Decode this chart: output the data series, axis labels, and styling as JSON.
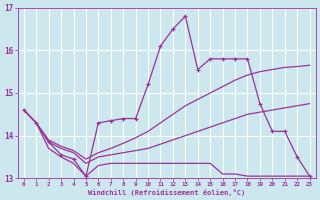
{
  "xlabel": "Windchill (Refroidissement éolien,°C)",
  "bg_color": "#cce8ee",
  "grid_color": "#ffffff",
  "line_color": "#993399",
  "xlim": [
    -0.5,
    23.5
  ],
  "ylim": [
    13,
    17
  ],
  "yticks": [
    13,
    14,
    15,
    16,
    17
  ],
  "xticks": [
    0,
    1,
    2,
    3,
    4,
    5,
    6,
    7,
    8,
    9,
    10,
    11,
    12,
    13,
    14,
    15,
    16,
    17,
    18,
    19,
    20,
    21,
    22,
    23
  ],
  "series": [
    {
      "x": [
        0,
        1,
        2,
        3,
        4,
        5,
        6,
        7,
        8,
        9,
        10,
        11,
        12,
        13,
        14,
        15,
        16,
        17,
        18,
        19,
        20,
        21,
        22,
        23
      ],
      "y": [
        14.6,
        14.3,
        13.7,
        13.5,
        13.35,
        13.05,
        13.3,
        13.35,
        13.35,
        13.35,
        13.35,
        13.35,
        13.35,
        13.35,
        13.35,
        13.35,
        13.1,
        13.1,
        13.05,
        13.05,
        13.05,
        13.05,
        13.05,
        13.05
      ],
      "marker": false
    },
    {
      "x": [
        0,
        1,
        2,
        3,
        4,
        5,
        6,
        7,
        8,
        9,
        10,
        11,
        12,
        13,
        14,
        15,
        16,
        17,
        18,
        19,
        20,
        21,
        22,
        23
      ],
      "y": [
        14.6,
        14.3,
        13.85,
        13.7,
        13.6,
        13.35,
        13.5,
        13.55,
        13.6,
        13.65,
        13.7,
        13.8,
        13.9,
        14.0,
        14.1,
        14.2,
        14.3,
        14.4,
        14.5,
        14.55,
        14.6,
        14.65,
        14.7,
        14.75
      ],
      "marker": false
    },
    {
      "x": [
        0,
        1,
        2,
        3,
        4,
        5,
        6,
        7,
        8,
        9,
        10,
        11,
        12,
        13,
        14,
        15,
        16,
        17,
        18,
        19,
        20,
        21,
        22,
        23
      ],
      "y": [
        14.6,
        14.3,
        13.9,
        13.75,
        13.65,
        13.45,
        13.6,
        13.7,
        13.82,
        13.95,
        14.1,
        14.3,
        14.5,
        14.7,
        14.85,
        15.0,
        15.15,
        15.3,
        15.42,
        15.5,
        15.55,
        15.6,
        15.62,
        15.65
      ],
      "marker": false
    },
    {
      "x": [
        0,
        1,
        2,
        3,
        4,
        5,
        6,
        7,
        8,
        9,
        10,
        11,
        12,
        13,
        14,
        15,
        16,
        17,
        18,
        19,
        20,
        21,
        22,
        23
      ],
      "y": [
        14.6,
        14.3,
        13.85,
        13.55,
        13.45,
        13.05,
        14.3,
        14.35,
        14.4,
        14.4,
        15.2,
        16.1,
        16.5,
        16.8,
        15.55,
        15.8,
        15.8,
        15.8,
        15.8,
        14.75,
        14.1,
        14.1,
        13.5,
        13.05
      ],
      "marker": true
    }
  ]
}
